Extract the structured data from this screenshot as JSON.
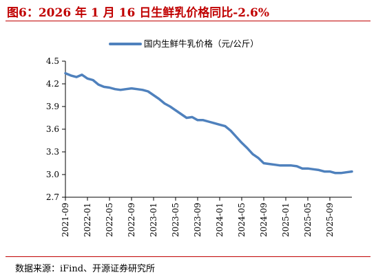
{
  "figure_title": "图6：2026 年 1 月 16 日生鲜乳价格同比-2.6%",
  "source_text": "数据来源：iFind、开源证券研究所",
  "colors": {
    "accent": "#c00000",
    "series": "#4f81bd",
    "axis": "#000000"
  },
  "chart_data": {
    "type": "line",
    "title": "",
    "xlabel": "",
    "ylabel": "",
    "ylim": [
      2.7,
      4.5
    ],
    "yticks": [
      "4.5",
      "4.2",
      "3.9",
      "3.6",
      "3.3",
      "3.0",
      "2.7"
    ],
    "xticks": [
      "2021-09",
      "2022-01",
      "2022-05",
      "2022-09",
      "2023-01",
      "2023-05",
      "2023-09",
      "2024-01",
      "2024-05",
      "2024-09",
      "2025-01",
      "2025-05",
      "2025-09"
    ],
    "grid": false,
    "legend_position": "top",
    "series": [
      {
        "name": "国内生鲜牛乳价格（元/公斤）",
        "x": [
          "2021-09",
          "2021-10",
          "2021-11",
          "2021-12",
          "2022-01",
          "2022-02",
          "2022-03",
          "2022-04",
          "2022-05",
          "2022-06",
          "2022-07",
          "2022-08",
          "2022-09",
          "2022-10",
          "2022-11",
          "2022-12",
          "2023-01",
          "2023-02",
          "2023-03",
          "2023-04",
          "2023-05",
          "2023-06",
          "2023-07",
          "2023-08",
          "2023-09",
          "2023-10",
          "2023-11",
          "2023-12",
          "2024-01",
          "2024-02",
          "2024-03",
          "2024-04",
          "2024-05",
          "2024-06",
          "2024-07",
          "2024-08",
          "2024-09",
          "2024-10",
          "2024-11",
          "2024-12",
          "2025-01",
          "2025-02",
          "2025-03",
          "2025-04",
          "2025-05",
          "2025-06",
          "2025-07",
          "2025-08",
          "2025-09",
          "2025-10",
          "2025-11",
          "2025-12",
          "2026-01"
        ],
        "values": [
          4.34,
          4.31,
          4.29,
          4.32,
          4.27,
          4.25,
          4.19,
          4.16,
          4.15,
          4.13,
          4.12,
          4.13,
          4.14,
          4.13,
          4.12,
          4.1,
          4.05,
          4.0,
          3.94,
          3.9,
          3.85,
          3.8,
          3.75,
          3.76,
          3.72,
          3.72,
          3.7,
          3.68,
          3.66,
          3.64,
          3.58,
          3.5,
          3.42,
          3.35,
          3.27,
          3.22,
          3.15,
          3.14,
          3.13,
          3.12,
          3.12,
          3.12,
          3.11,
          3.08,
          3.08,
          3.07,
          3.06,
          3.04,
          3.04,
          3.02,
          3.02,
          3.03,
          3.04
        ]
      }
    ]
  }
}
